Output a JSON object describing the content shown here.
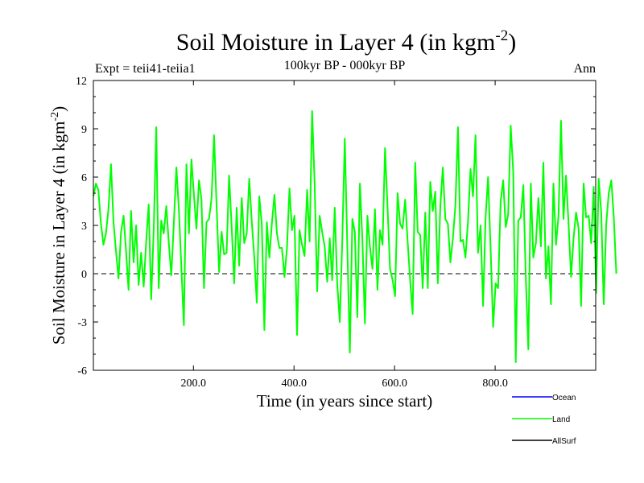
{
  "title": {
    "main": "Soil Moisture in Layer 4 (in kgm",
    "sup": "-2",
    "close": ")"
  },
  "subtitle": "100kyr BP - 000kyr BP",
  "expt_label": "Expt = teii41-teiia1",
  "season_label": "Ann",
  "chart_data": {
    "type": "line",
    "title": "Soil Moisture in Layer 4 (in kgm-2)",
    "subtitle": "100kyr BP - 000kyr BP",
    "xlabel": "Time (in years since start)",
    "ylabel": {
      "main": "Soil Moisture in Layer 4 (in kgm",
      "sup": "-2",
      "close": ")"
    },
    "xlim": [
      1,
      1000
    ],
    "ylim": [
      -6,
      12
    ],
    "x_ticks": [
      200,
      400,
      600,
      800
    ],
    "x_tick_labels": [
      "200.0",
      "400.0",
      "600.0",
      "800.0"
    ],
    "y_ticks": [
      -6,
      -3,
      0,
      3,
      6,
      9,
      12
    ],
    "y_tick_labels": [
      "-6",
      "-3",
      "0",
      "3",
      "6",
      "9",
      "12"
    ],
    "zero_line": "dashed",
    "grid": false,
    "legend_position": "bottom-right",
    "series": [
      {
        "name": "Ocean",
        "color": "#0000ff",
        "values": []
      },
      {
        "name": "Land",
        "color": "#00ff00",
        "x_start": 1,
        "x_step": 5,
        "values": [
          4.8,
          5.6,
          5.2,
          3.1,
          1.8,
          2.5,
          4.0,
          6.8,
          3.2,
          1.4,
          -0.3,
          2.6,
          3.6,
          1.4,
          -1.0,
          3.9,
          0.7,
          3.0,
          -0.7,
          1.3,
          -0.8,
          2.0,
          4.3,
          -1.6,
          2.8,
          9.1,
          -0.9,
          3.3,
          2.5,
          4.2,
          1.9,
          -0.1,
          3.1,
          6.6,
          4.0,
          0.4,
          -3.2,
          6.8,
          2.5,
          7.1,
          4.9,
          2.8,
          5.8,
          4.6,
          -0.9,
          3.2,
          3.4,
          4.7,
          8.6,
          4.3,
          0.1,
          2.6,
          1.2,
          1.3,
          6.1,
          2.9,
          -0.6,
          4.1,
          0.5,
          4.7,
          1.9,
          2.5,
          5.9,
          3.2,
          1.0,
          -1.8,
          4.8,
          3.1,
          -3.5,
          3.2,
          1.0,
          3.1,
          4.9,
          2.5,
          1.6,
          1.6,
          -0.2,
          1.6,
          5.3,
          2.7,
          3.6,
          -3.8,
          2.7,
          1.8,
          1.1,
          5.2,
          2.0,
          10.1,
          5.7,
          -1.1,
          3.6,
          2.6,
          1.7,
          -0.5,
          2.2,
          -0.4,
          4.1,
          -0.6,
          -3.0,
          2.1,
          8.4,
          1.8,
          -4.9,
          3.4,
          2.6,
          -2.7,
          5.6,
          2.1,
          -3.1,
          3.6,
          1.7,
          0.3,
          4.0,
          -1.0,
          2.7,
          1.8,
          7.8,
          4.2,
          0.3,
          -0.4,
          -1.4,
          5.0,
          3.1,
          2.8,
          4.6,
          2.0,
          -0.4,
          -2.5,
          6.9,
          2.6,
          2.4,
          -0.9,
          3.8,
          -0.9,
          5.7,
          3.9,
          5.1,
          -0.6,
          4.2,
          6.6,
          3.4,
          3.1,
          0.7,
          2.2,
          4.2,
          9.1,
          2.0,
          2.1,
          1.0,
          3.2,
          6.5,
          4.8,
          8.6,
          1.3,
          3.0,
          -2.0,
          3.5,
          6.0,
          1.5,
          -3.3,
          -0.6,
          -0.9,
          4.5,
          5.8,
          2.9,
          3.7,
          9.2,
          6.3,
          -5.5,
          3.3,
          3.5,
          5.5,
          -0.3,
          -4.7,
          5.6,
          1.0,
          1.9,
          4.7,
          1.7,
          6.9,
          -0.3,
          1.7,
          -1.9,
          5.6,
          1.8,
          3.6,
          9.5,
          3.4,
          6.1,
          3.1,
          -0.2,
          2.2,
          3.8,
          2.8,
          -2.0,
          5.6,
          3.5,
          3.6,
          1.9,
          5.4,
          -1.2,
          5.9,
          3.8,
          -1.9,
          3.1,
          5.0,
          5.8,
          3.5,
          0.0
        ]
      },
      {
        "name": "AllSurf",
        "color": "#000000",
        "values": []
      }
    ]
  },
  "legend": [
    {
      "label": "Ocean",
      "color": "#0000ff"
    },
    {
      "label": "Land",
      "color": "#00ff00"
    },
    {
      "label": "AllSurf",
      "color": "#000000"
    }
  ]
}
